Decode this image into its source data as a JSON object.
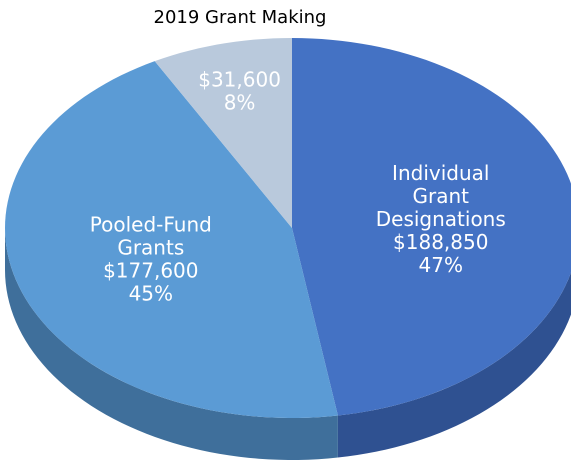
{
  "chart_data": {
    "type": "pie",
    "title": "2019 Grant Making",
    "categories": [
      "Individual Grant Designations",
      "Pooled-Fund Grants",
      null
    ],
    "values": [
      188850,
      177600,
      31600
    ],
    "value_labels": [
      "$188,850",
      "$177,600",
      "$31,600"
    ],
    "percent_labels": [
      "47%",
      "45%",
      "8%"
    ],
    "colors": [
      "#4472c4",
      "#5b9bd5",
      "#b9c9dc"
    ],
    "side_colors": [
      "#2f5191",
      "#3f6f9b",
      "#8a97a5"
    ]
  }
}
